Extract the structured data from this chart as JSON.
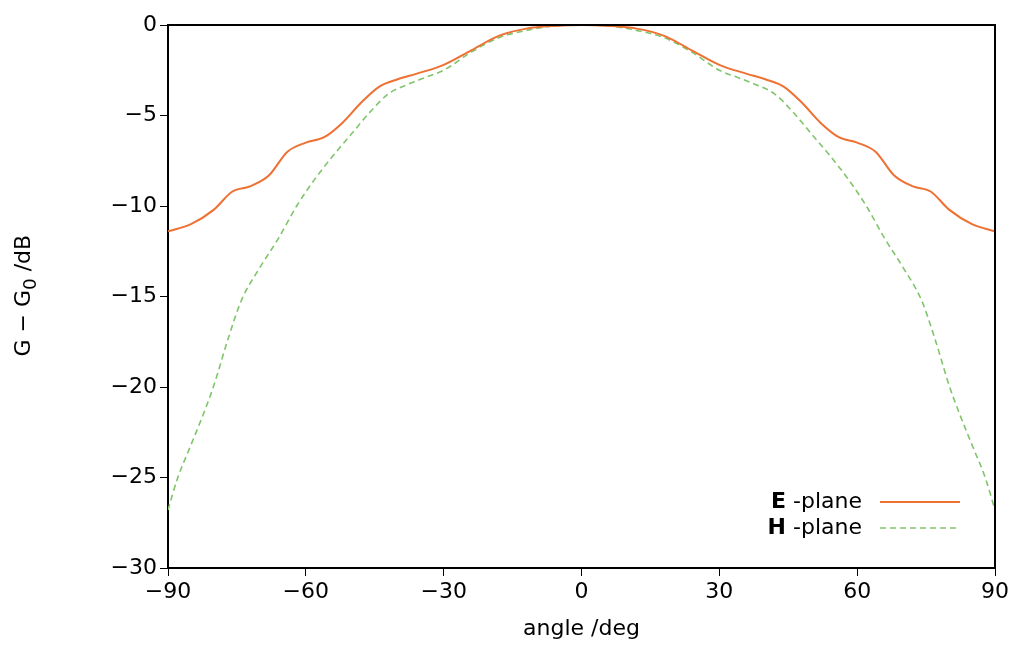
{
  "chart_data": {
    "type": "line",
    "xlabel": "angle /deg",
    "ylabel": "G − G$_{0}$ /dB",
    "xlim": [
      -90,
      90
    ],
    "xticks": [
      -90,
      -60,
      -30,
      0,
      30,
      60,
      90
    ],
    "ylim": [
      -30,
      0
    ],
    "yticks": [
      -30,
      -25,
      -20,
      -15,
      -10,
      -5,
      0
    ],
    "grid": false,
    "legend": "bottom right",
    "marker": "none",
    "series": [
      {
        "name": "E -plane",
        "color": "#ee7032",
        "line_style": "solid",
        "x": [
          -90,
          -85,
          -80,
          -76,
          -72,
          -68,
          -64,
          -60,
          -56,
          -52,
          -48,
          -44,
          -40,
          -36,
          -30,
          -24,
          -18,
          -12,
          -6,
          0,
          6,
          12,
          18,
          24,
          30,
          36,
          40,
          44,
          48,
          52,
          56,
          60,
          64,
          68,
          72,
          76,
          80,
          85,
          90
        ],
        "values": [
          -11.4,
          -11.0,
          -10.2,
          -9.2,
          -8.9,
          -8.3,
          -7.0,
          -6.5,
          -6.2,
          -5.4,
          -4.3,
          -3.4,
          -3.0,
          -2.7,
          -2.2,
          -1.4,
          -0.6,
          -0.2,
          -0.05,
          0,
          -0.05,
          -0.2,
          -0.6,
          -1.4,
          -2.2,
          -2.7,
          -3.0,
          -3.4,
          -4.3,
          -5.4,
          -6.2,
          -6.5,
          -7.0,
          -8.3,
          -8.9,
          -9.2,
          -10.2,
          -11.0,
          -11.4
        ]
      },
      {
        "name": "H -plane",
        "color": "#80c56b",
        "line_style": "dashed",
        "x": [
          -90,
          -88,
          -85,
          -82,
          -80,
          -77,
          -74,
          -70,
          -66,
          -62,
          -58,
          -54,
          -50,
          -46,
          -42,
          -38,
          -34,
          -30,
          -24,
          -18,
          -12,
          -6,
          0,
          6,
          12,
          18,
          24,
          30,
          34,
          38,
          42,
          46,
          50,
          54,
          58,
          62,
          66,
          70,
          74,
          77,
          80,
          82,
          85,
          88,
          90
        ],
        "values": [
          -26.8,
          -25.1,
          -23.2,
          -21.3,
          -19.9,
          -17.4,
          -15.2,
          -13.4,
          -11.8,
          -10.0,
          -8.5,
          -7.2,
          -6.0,
          -4.8,
          -3.8,
          -3.3,
          -2.9,
          -2.5,
          -1.5,
          -0.7,
          -0.3,
          -0.05,
          0,
          -0.05,
          -0.3,
          -0.7,
          -1.5,
          -2.5,
          -2.9,
          -3.3,
          -3.8,
          -4.8,
          -6.0,
          -7.2,
          -8.5,
          -10.0,
          -11.8,
          -13.4,
          -15.2,
          -17.4,
          -19.9,
          -21.3,
          -23.2,
          -25.1,
          -26.8
        ]
      }
    ]
  }
}
